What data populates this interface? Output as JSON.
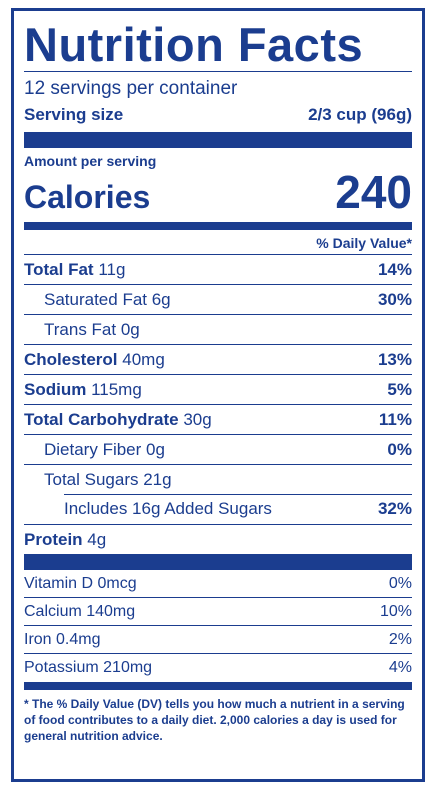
{
  "title": "Nutrition Facts",
  "servings_per_container": "12 servings per container",
  "serving_size_label": "Serving size",
  "serving_size_value": "2/3 cup (96g)",
  "amount_per_serving": "Amount per serving",
  "calories_label": "Calories",
  "calories_value": "240",
  "daily_value_header": "% Daily Value*",
  "nutrients": {
    "total_fat": {
      "name": "Total Fat",
      "amount": "11g",
      "dv": "14%"
    },
    "saturated_fat": {
      "name": "Saturated Fat 6g",
      "dv": "30%"
    },
    "trans_fat": {
      "name": "Trans Fat 0g"
    },
    "cholesterol": {
      "name": "Cholesterol",
      "amount": "40mg",
      "dv": "13%"
    },
    "sodium": {
      "name": "Sodium",
      "amount": "115mg",
      "dv": "5%"
    },
    "total_carbohydrate": {
      "name": "Total Carbohydrate",
      "amount": "30g",
      "dv": "11%"
    },
    "dietary_fiber": {
      "name": "Dietary Fiber 0g",
      "dv": "0%"
    },
    "total_sugars": {
      "name": "Total Sugars 21g"
    },
    "added_sugars": {
      "name": "Includes 16g Added Sugars",
      "dv": "32%"
    },
    "protein": {
      "name": "Protein",
      "amount": "4g"
    }
  },
  "vitamins": [
    {
      "name": "Vitamin D 0mcg",
      "dv": "0%"
    },
    {
      "name": "Calcium 140mg",
      "dv": "10%"
    },
    {
      "name": "Iron 0.4mg",
      "dv": "2%"
    },
    {
      "name": "Potassium 210mg",
      "dv": "4%"
    }
  ],
  "footnote": "* The % Daily Value (DV) tells you how much a nutrient in a serving of food contributes to a daily diet. 2,000 calories a day is used for general nutrition advice.",
  "colors": {
    "ink": "#1b3d8f",
    "background": "#ffffff"
  }
}
